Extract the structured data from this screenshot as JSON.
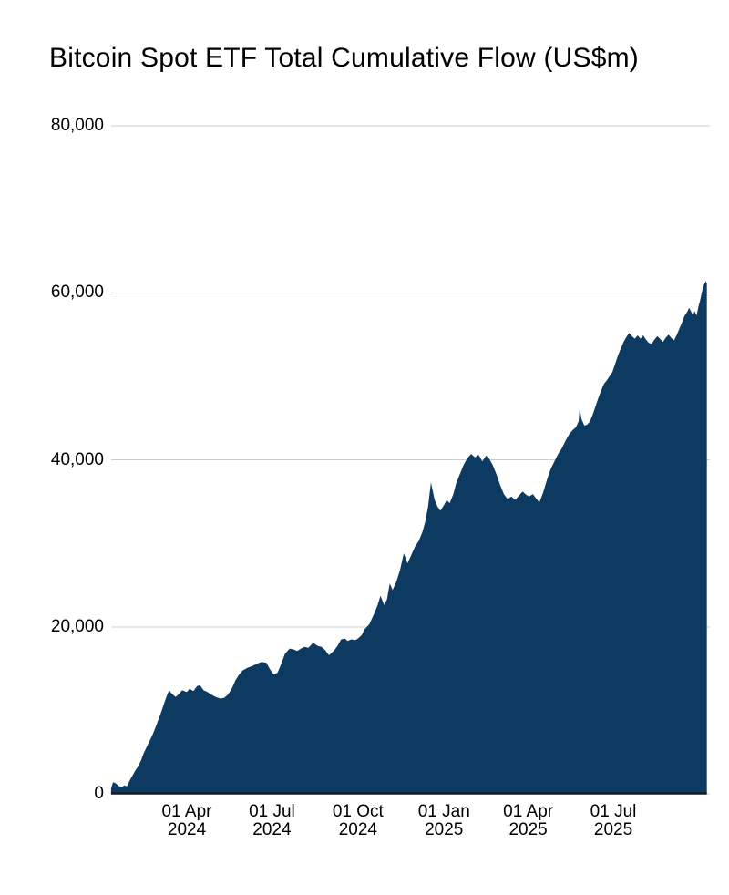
{
  "chart_data": {
    "type": "area",
    "title": "Bitcoin Spot ETF Total Cumulative Flow (US$m)",
    "legend": "none",
    "grid": "horizontal",
    "colors": {
      "area": "#0d3a61",
      "gridline": "#cccccc",
      "axis_line": "#1a1a1a",
      "text": "#000000",
      "background": "#ffffff"
    },
    "x_axis": {
      "unit": "days since 2024-01-11",
      "start_date": "2024-01-11",
      "end_date": "2025-10-09",
      "ticks": [
        {
          "day": 81,
          "line1": "01 Apr",
          "line2": "2024"
        },
        {
          "day": 172,
          "line1": "01 Jul",
          "line2": "2024"
        },
        {
          "day": 264,
          "line1": "01 Oct",
          "line2": "2024"
        },
        {
          "day": 356,
          "line1": "01 Jan",
          "line2": "2025"
        },
        {
          "day": 446,
          "line1": "01 Apr",
          "line2": "2025"
        },
        {
          "day": 537,
          "line1": "01 Jul",
          "line2": "2025"
        }
      ]
    },
    "y_axis": {
      "ylim": [
        0,
        80000
      ],
      "ticks": [
        {
          "value": 0,
          "label": "0"
        },
        {
          "value": 20000,
          "label": "20,000"
        },
        {
          "value": 40000,
          "label": "40,000"
        },
        {
          "value": 60000,
          "label": "60,000"
        },
        {
          "value": 80000,
          "label": "80,000"
        }
      ]
    },
    "series": [
      {
        "name": "Total cumulative flow (US$m)",
        "points": [
          [
            0,
            630
          ],
          [
            2,
            1400
          ],
          [
            5,
            1250
          ],
          [
            8,
            950
          ],
          [
            11,
            800
          ],
          [
            14,
            1000
          ],
          [
            17,
            900
          ],
          [
            20,
            1600
          ],
          [
            23,
            2200
          ],
          [
            26,
            2800
          ],
          [
            29,
            3300
          ],
          [
            32,
            4000
          ],
          [
            35,
            4900
          ],
          [
            38,
            5600
          ],
          [
            41,
            6300
          ],
          [
            44,
            7000
          ],
          [
            47,
            7800
          ],
          [
            50,
            8700
          ],
          [
            53,
            9600
          ],
          [
            56,
            10600
          ],
          [
            59,
            11600
          ],
          [
            62,
            12400
          ],
          [
            65,
            12000
          ],
          [
            69,
            11600
          ],
          [
            72,
            11900
          ],
          [
            76,
            12400
          ],
          [
            81,
            12200
          ],
          [
            84,
            12600
          ],
          [
            88,
            12300
          ],
          [
            92,
            12900
          ],
          [
            95,
            13000
          ],
          [
            99,
            12400
          ],
          [
            103,
            12200
          ],
          [
            107,
            11900
          ],
          [
            112,
            11600
          ],
          [
            117,
            11400
          ],
          [
            121,
            11500
          ],
          [
            125,
            11900
          ],
          [
            129,
            12600
          ],
          [
            133,
            13600
          ],
          [
            137,
            14300
          ],
          [
            141,
            14800
          ],
          [
            146,
            15100
          ],
          [
            151,
            15300
          ],
          [
            156,
            15600
          ],
          [
            161,
            15800
          ],
          [
            166,
            15700
          ],
          [
            170,
            14900
          ],
          [
            174,
            14300
          ],
          [
            178,
            14500
          ],
          [
            182,
            15600
          ],
          [
            186,
            16800
          ],
          [
            191,
            17400
          ],
          [
            195,
            17300
          ],
          [
            199,
            17100
          ],
          [
            203,
            17400
          ],
          [
            207,
            17600
          ],
          [
            211,
            17500
          ],
          [
            216,
            18100
          ],
          [
            221,
            17700
          ],
          [
            225,
            17600
          ],
          [
            229,
            17200
          ],
          [
            233,
            16600
          ],
          [
            238,
            17100
          ],
          [
            242,
            17700
          ],
          [
            246,
            18500
          ],
          [
            250,
            18600
          ],
          [
            253,
            18300
          ],
          [
            257,
            18500
          ],
          [
            261,
            18400
          ],
          [
            264,
            18600
          ],
          [
            268,
            19000
          ],
          [
            271,
            19700
          ],
          [
            276,
            20300
          ],
          [
            281,
            21500
          ],
          [
            285,
            22600
          ],
          [
            288,
            23700
          ],
          [
            292,
            22600
          ],
          [
            295,
            23300
          ],
          [
            298,
            25200
          ],
          [
            301,
            24400
          ],
          [
            305,
            25400
          ],
          [
            309,
            26800
          ],
          [
            313,
            28800
          ],
          [
            317,
            27600
          ],
          [
            321,
            28600
          ],
          [
            325,
            29600
          ],
          [
            329,
            30300
          ],
          [
            333,
            31400
          ],
          [
            336,
            32600
          ],
          [
            339,
            34400
          ],
          [
            342,
            37300
          ],
          [
            346,
            35200
          ],
          [
            349,
            34400
          ],
          [
            352,
            33900
          ],
          [
            356,
            34600
          ],
          [
            359,
            35200
          ],
          [
            362,
            34800
          ],
          [
            366,
            35900
          ],
          [
            369,
            37200
          ],
          [
            373,
            38300
          ],
          [
            377,
            39400
          ],
          [
            381,
            40200
          ],
          [
            385,
            40700
          ],
          [
            389,
            40300
          ],
          [
            393,
            40600
          ],
          [
            397,
            39800
          ],
          [
            401,
            40500
          ],
          [
            404,
            40200
          ],
          [
            408,
            39400
          ],
          [
            412,
            38300
          ],
          [
            416,
            37000
          ],
          [
            420,
            35900
          ],
          [
            424,
            35300
          ],
          [
            428,
            35600
          ],
          [
            432,
            35200
          ],
          [
            436,
            35700
          ],
          [
            440,
            36200
          ],
          [
            444,
            35800
          ],
          [
            447,
            35600
          ],
          [
            451,
            35900
          ],
          [
            455,
            35300
          ],
          [
            458,
            34900
          ],
          [
            462,
            36100
          ],
          [
            466,
            37600
          ],
          [
            470,
            38900
          ],
          [
            474,
            39800
          ],
          [
            478,
            40700
          ],
          [
            482,
            41400
          ],
          [
            486,
            42300
          ],
          [
            490,
            43100
          ],
          [
            494,
            43600
          ],
          [
            497,
            43900
          ],
          [
            500,
            44600
          ],
          [
            501,
            46200
          ],
          [
            503,
            44900
          ],
          [
            506,
            44100
          ],
          [
            509,
            44200
          ],
          [
            512,
            44600
          ],
          [
            515,
            45400
          ],
          [
            518,
            46400
          ],
          [
            521,
            47400
          ],
          [
            524,
            48300
          ],
          [
            527,
            49100
          ],
          [
            530,
            49500
          ],
          [
            533,
            50000
          ],
          [
            536,
            50500
          ],
          [
            539,
            51500
          ],
          [
            542,
            52500
          ],
          [
            545,
            53300
          ],
          [
            548,
            54100
          ],
          [
            551,
            54700
          ],
          [
            554,
            55200
          ],
          [
            557,
            54800
          ],
          [
            560,
            54500
          ],
          [
            563,
            54900
          ],
          [
            566,
            54500
          ],
          [
            569,
            54900
          ],
          [
            572,
            54400
          ],
          [
            575,
            54000
          ],
          [
            578,
            53900
          ],
          [
            581,
            54400
          ],
          [
            584,
            54800
          ],
          [
            587,
            54500
          ],
          [
            590,
            54100
          ],
          [
            593,
            54600
          ],
          [
            596,
            55000
          ],
          [
            599,
            54600
          ],
          [
            602,
            54300
          ],
          [
            605,
            55000
          ],
          [
            608,
            55800
          ],
          [
            611,
            56600
          ],
          [
            613,
            57200
          ],
          [
            616,
            57700
          ],
          [
            618,
            58200
          ],
          [
            620,
            57800
          ],
          [
            622,
            57300
          ],
          [
            624,
            57800
          ],
          [
            626,
            57300
          ],
          [
            628,
            58300
          ],
          [
            630,
            59200
          ],
          [
            632,
            60200
          ],
          [
            634,
            61000
          ],
          [
            636,
            61400
          ],
          [
            637,
            61100
          ]
        ]
      }
    ]
  }
}
